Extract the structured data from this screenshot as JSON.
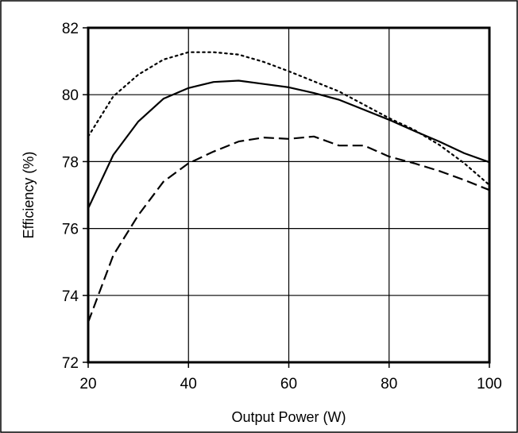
{
  "chart_data": {
    "type": "line",
    "title": "",
    "xlabel": "Output Power (W)",
    "ylabel": "Efficiency (%)",
    "xlim": [
      20,
      100
    ],
    "ylim": [
      72,
      82
    ],
    "xticks": [
      20,
      40,
      60,
      80,
      100
    ],
    "yticks": [
      72,
      74,
      76,
      78,
      80,
      82
    ],
    "grid": true,
    "legend": "none",
    "series": [
      {
        "style": "dotted",
        "color": "#000000",
        "x": [
          20,
          25,
          30,
          35,
          40,
          45,
          50,
          55,
          60,
          65,
          70,
          75,
          80,
          85,
          90,
          95,
          100
        ],
        "y": [
          78.75,
          79.95,
          80.6,
          81.05,
          81.27,
          81.27,
          81.2,
          80.98,
          80.7,
          80.4,
          80.1,
          79.7,
          79.3,
          78.95,
          78.5,
          77.95,
          77.3
        ]
      },
      {
        "style": "solid",
        "color": "#000000",
        "x": [
          20,
          25,
          30,
          35,
          40,
          45,
          50,
          55,
          60,
          65,
          70,
          75,
          80,
          85,
          90,
          95,
          100
        ],
        "y": [
          76.6,
          78.2,
          79.2,
          79.88,
          80.2,
          80.38,
          80.42,
          80.32,
          80.22,
          80.05,
          79.85,
          79.55,
          79.25,
          78.92,
          78.6,
          78.25,
          77.98
        ]
      },
      {
        "style": "dashed",
        "color": "#000000",
        "x": [
          20,
          25,
          30,
          35,
          40,
          45,
          50,
          55,
          60,
          65,
          70,
          75,
          80,
          85,
          90,
          95,
          100
        ],
        "y": [
          73.2,
          75.2,
          76.4,
          77.4,
          77.95,
          78.3,
          78.6,
          78.72,
          78.68,
          78.75,
          78.48,
          78.48,
          78.15,
          77.95,
          77.72,
          77.45,
          77.15
        ]
      }
    ]
  }
}
